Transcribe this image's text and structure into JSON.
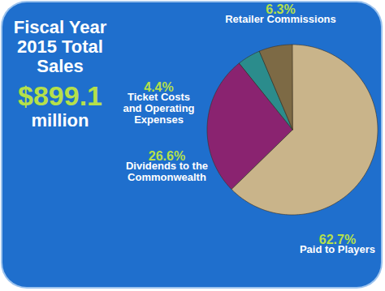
{
  "chart_data": {
    "type": "pie",
    "title": "Fiscal Year 2015 Total Sales",
    "subtitle": "$899.1 million",
    "categories": [
      "Paid to Players",
      "Dividends to the Commonwealth",
      "Ticket Costs and Operating Expenses",
      "Retailer Commissions"
    ],
    "values": [
      62.7,
      26.6,
      4.4,
      6.3
    ],
    "value_labels": [
      "62.7%",
      "26.6%",
      "4.4%",
      "6.3%"
    ],
    "colors": [
      "#c9b48a",
      "#8a2370",
      "#2b8c8c",
      "#7d6a45"
    ],
    "data_labels": true
  }
}
